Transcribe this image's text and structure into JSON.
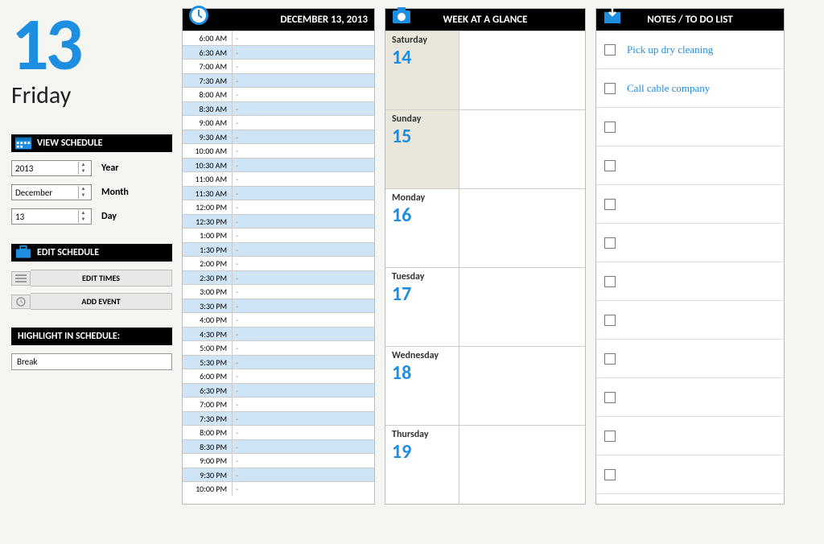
{
  "colors": {
    "accent": "#1e8fe0",
    "header_bg": "#000000",
    "alt_row": "#cfe4f5",
    "wk_shade": "#e9e7dc"
  },
  "left": {
    "big_date": "13",
    "weekday": "Friday",
    "view_schedule_label": "VIEW SCHEDULE",
    "year": {
      "value": "2013",
      "label": "Year"
    },
    "month": {
      "value": "December",
      "label": "Month"
    },
    "day": {
      "value": "13",
      "label": "Day"
    },
    "edit_schedule_label": "EDIT SCHEDULE",
    "edit_times_btn": "EDIT TIMES",
    "add_event_btn": "ADD EVENT",
    "highlight_label": "HIGHLIGHT IN SCHEDULE:",
    "highlight_value": "Break"
  },
  "schedule": {
    "header": "DECEMBER 13, 2013",
    "slots": [
      {
        "t": "6:00 AM",
        "e": "-",
        "alt": false
      },
      {
        "t": "6:30 AM",
        "e": "-",
        "alt": true
      },
      {
        "t": "7:00 AM",
        "e": "-",
        "alt": false
      },
      {
        "t": "7:30 AM",
        "e": "-",
        "alt": true
      },
      {
        "t": "8:00 AM",
        "e": "-",
        "alt": false
      },
      {
        "t": "8:30 AM",
        "e": "-",
        "alt": true
      },
      {
        "t": "9:00 AM",
        "e": "-",
        "alt": false
      },
      {
        "t": "9:30 AM",
        "e": "-",
        "alt": true
      },
      {
        "t": "10:00 AM",
        "e": "-",
        "alt": false
      },
      {
        "t": "10:30 AM",
        "e": "-",
        "alt": true
      },
      {
        "t": "11:00 AM",
        "e": "-",
        "alt": false
      },
      {
        "t": "11:30 AM",
        "e": "-",
        "alt": true
      },
      {
        "t": "12:00 PM",
        "e": "-",
        "alt": false
      },
      {
        "t": "12:30 PM",
        "e": "-",
        "alt": true
      },
      {
        "t": "1:00 PM",
        "e": "-",
        "alt": false
      },
      {
        "t": "1:30 PM",
        "e": "-",
        "alt": true
      },
      {
        "t": "2:00 PM",
        "e": "-",
        "alt": false
      },
      {
        "t": "2:30 PM",
        "e": "-",
        "alt": true
      },
      {
        "t": "3:00 PM",
        "e": "-",
        "alt": false
      },
      {
        "t": "3:30 PM",
        "e": "-",
        "alt": true
      },
      {
        "t": "4:00 PM",
        "e": "-",
        "alt": false
      },
      {
        "t": "4:30 PM",
        "e": "-",
        "alt": true
      },
      {
        "t": "5:00 PM",
        "e": "-",
        "alt": false
      },
      {
        "t": "5:30 PM",
        "e": "-",
        "alt": true
      },
      {
        "t": "6:00 PM",
        "e": "-",
        "alt": false
      },
      {
        "t": "6:30 PM",
        "e": "-",
        "alt": true
      },
      {
        "t": "7:00 PM",
        "e": "-",
        "alt": false
      },
      {
        "t": "7:30 PM",
        "e": "-",
        "alt": true
      },
      {
        "t": "8:00 PM",
        "e": "-",
        "alt": false
      },
      {
        "t": "8:30 PM",
        "e": "-",
        "alt": true
      },
      {
        "t": "9:00 PM",
        "e": "-",
        "alt": false
      },
      {
        "t": "9:30 PM",
        "e": "-",
        "alt": true
      },
      {
        "t": "10:00 PM",
        "e": "-",
        "alt": false
      }
    ]
  },
  "week": {
    "header": "WEEK AT A GLANCE",
    "days": [
      {
        "name": "Saturday",
        "num": "14",
        "shade": true
      },
      {
        "name": "Sunday",
        "num": "15",
        "shade": true
      },
      {
        "name": "Monday",
        "num": "16",
        "shade": false
      },
      {
        "name": "Tuesday",
        "num": "17",
        "shade": false
      },
      {
        "name": "Wednesday",
        "num": "18",
        "shade": false
      },
      {
        "name": "Thursday",
        "num": "19",
        "shade": false
      }
    ]
  },
  "notes": {
    "header": "NOTES / TO DO LIST",
    "items": [
      {
        "text": "Pick up dry cleaning",
        "checked": false
      },
      {
        "text": "Call cable company",
        "checked": false
      },
      {
        "text": "",
        "checked": false
      },
      {
        "text": "",
        "checked": false
      },
      {
        "text": "",
        "checked": false
      },
      {
        "text": "",
        "checked": false
      },
      {
        "text": "",
        "checked": false
      },
      {
        "text": "",
        "checked": false
      },
      {
        "text": "",
        "checked": false
      },
      {
        "text": "",
        "checked": false
      },
      {
        "text": "",
        "checked": false
      },
      {
        "text": "",
        "checked": false
      }
    ]
  }
}
